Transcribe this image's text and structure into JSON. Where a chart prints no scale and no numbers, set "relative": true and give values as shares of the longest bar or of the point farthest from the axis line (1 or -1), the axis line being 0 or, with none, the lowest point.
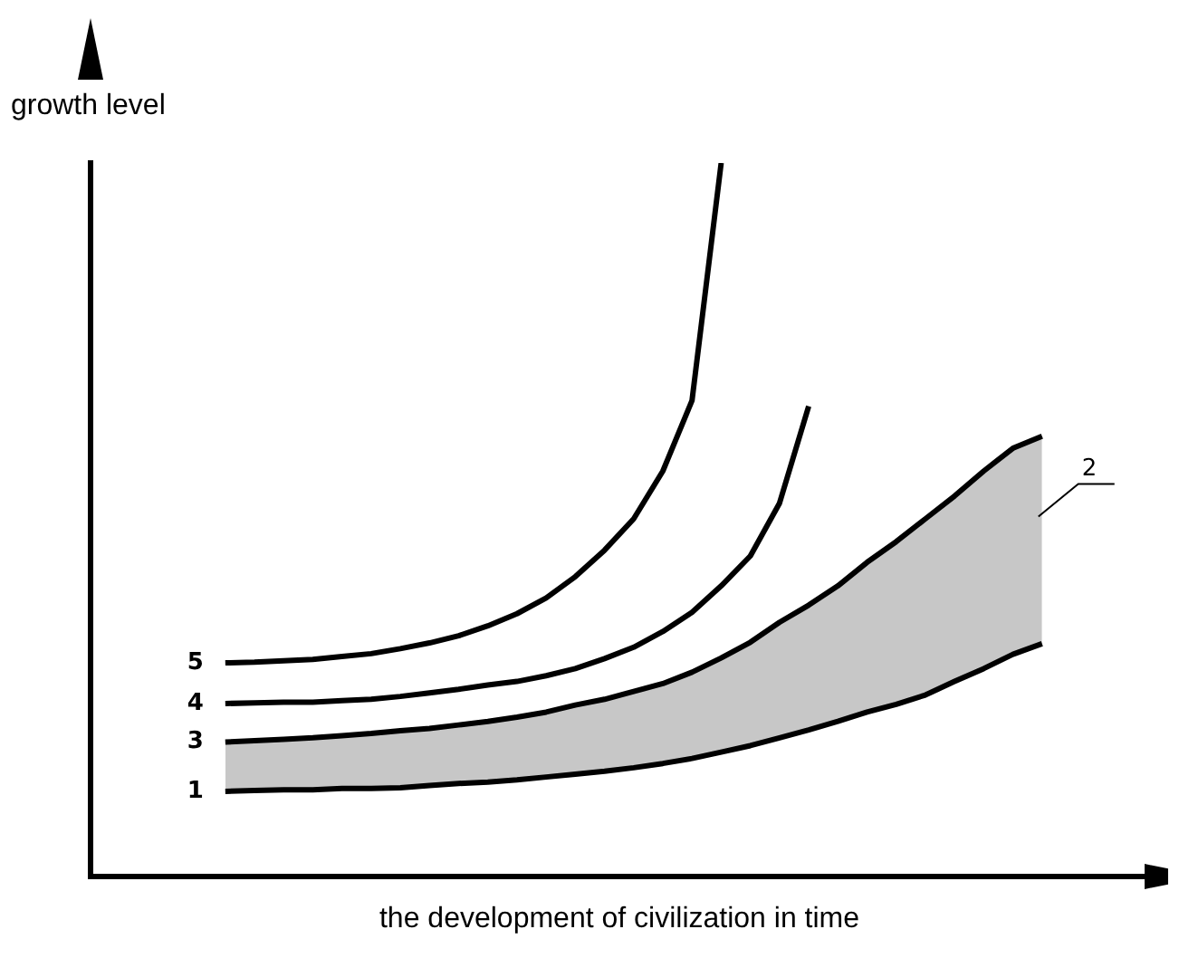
{
  "chart_data": {
    "type": "line",
    "relative": true,
    "xlabel": "the development of civilization in time",
    "ylabel": "growth level",
    "annotations": [
      "2"
    ],
    "grid": false,
    "legend": false,
    "marker": "none",
    "line_style": "solid",
    "categories": [
      null,
      null,
      null,
      null,
      null,
      null,
      null,
      null,
      null,
      null,
      null,
      null,
      null,
      null,
      null,
      null,
      null,
      null,
      null,
      null,
      null,
      null,
      null,
      null,
      null,
      null,
      null,
      null,
      null
    ],
    "series": [
      {
        "name": "1",
        "color": "#000000",
        "values": [
          0.119,
          0.12,
          0.121,
          0.121,
          0.123,
          0.123,
          0.124,
          0.127,
          0.13,
          0.132,
          0.135,
          0.139,
          0.143,
          0.147,
          0.152,
          0.158,
          0.165,
          0.174,
          0.183,
          0.194,
          0.205,
          0.217,
          0.23,
          0.241,
          0.254,
          0.273,
          0.291,
          0.311,
          0.326
        ]
      },
      {
        "name": "3",
        "color": "#000000",
        "values": [
          0.188,
          0.19,
          0.192,
          0.194,
          0.197,
          0.2,
          0.204,
          0.207,
          0.212,
          0.217,
          0.223,
          0.23,
          0.24,
          0.248,
          0.259,
          0.27,
          0.286,
          0.306,
          0.328,
          0.356,
          0.38,
          0.407,
          0.44,
          0.469,
          0.501,
          0.533,
          0.568,
          0.6,
          0.617
        ],
        "lower": [
          0.119,
          0.12,
          0.121,
          0.121,
          0.123,
          0.123,
          0.124,
          0.127,
          0.13,
          0.132,
          0.135,
          0.139,
          0.143,
          0.147,
          0.152,
          0.158,
          0.165,
          0.174,
          0.183,
          0.194,
          0.205,
          0.217,
          0.23,
          0.241,
          0.254,
          0.273,
          0.291,
          0.311,
          0.326
        ],
        "upper": [
          0.188,
          0.19,
          0.192,
          0.194,
          0.197,
          0.2,
          0.204,
          0.207,
          0.212,
          0.217,
          0.223,
          0.23,
          0.24,
          0.248,
          0.259,
          0.27,
          0.286,
          0.306,
          0.328,
          0.356,
          0.38,
          0.407,
          0.44,
          0.469,
          0.501,
          0.533,
          0.568,
          0.6,
          0.617
        ]
      },
      {
        "name": "4",
        "color": "#000000",
        "values": [
          0.242,
          0.243,
          0.244,
          0.244,
          0.246,
          0.248,
          0.252,
          0.257,
          0.262,
          0.268,
          0.273,
          0.281,
          0.291,
          0.305,
          0.321,
          0.343,
          0.37,
          0.407,
          0.449,
          0.523,
          0.659,
          null,
          null,
          null,
          null,
          null,
          null,
          null,
          null
        ]
      },
      {
        "name": "5",
        "color": "#000000",
        "values": [
          0.299,
          0.3,
          0.302,
          0.304,
          0.308,
          0.312,
          0.319,
          0.327,
          0.337,
          0.351,
          0.368,
          0.39,
          0.42,
          0.457,
          0.501,
          0.568,
          0.667,
          1.0,
          null,
          null,
          null,
          null,
          null,
          null,
          null,
          null,
          null,
          null,
          null
        ]
      }
    ]
  }
}
